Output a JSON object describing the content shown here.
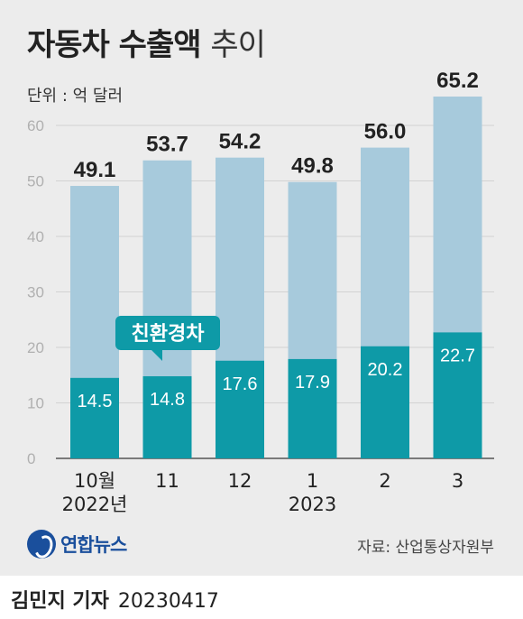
{
  "chart_data": {
    "type": "bar",
    "title": "자동차 수출액",
    "title_suffix": "추이",
    "unit": "단위 : 억 달러",
    "categories": [
      "10월",
      "11",
      "12",
      "1",
      "2",
      "3"
    ],
    "year_labels": [
      "2022년",
      "",
      "",
      "2023",
      "",
      ""
    ],
    "series": [
      {
        "name": "자동차 수출액",
        "values": [
          49.1,
          53.7,
          54.2,
          49.8,
          56.0,
          65.2
        ],
        "labels": [
          "49.1",
          "53.7",
          "54.2",
          "49.8",
          "56.0",
          "65.2"
        ],
        "color": "#a7cadc"
      },
      {
        "name": "친환경차",
        "values": [
          14.5,
          14.8,
          17.6,
          17.9,
          20.2,
          22.7
        ],
        "labels": [
          "14.5",
          "14.8",
          "17.6",
          "17.9",
          "20.2",
          "22.7"
        ],
        "color": "#0e9aa7"
      }
    ],
    "callout": "친환경차",
    "ylim": [
      0,
      65
    ],
    "yticks": [
      0,
      10,
      20,
      30,
      40,
      50,
      60
    ],
    "grid": true
  },
  "footer": {
    "logo_text": "연합뉴스",
    "source": "자료: 산업통상자원부",
    "reporter": "김민지 기자",
    "date": "20230417"
  }
}
